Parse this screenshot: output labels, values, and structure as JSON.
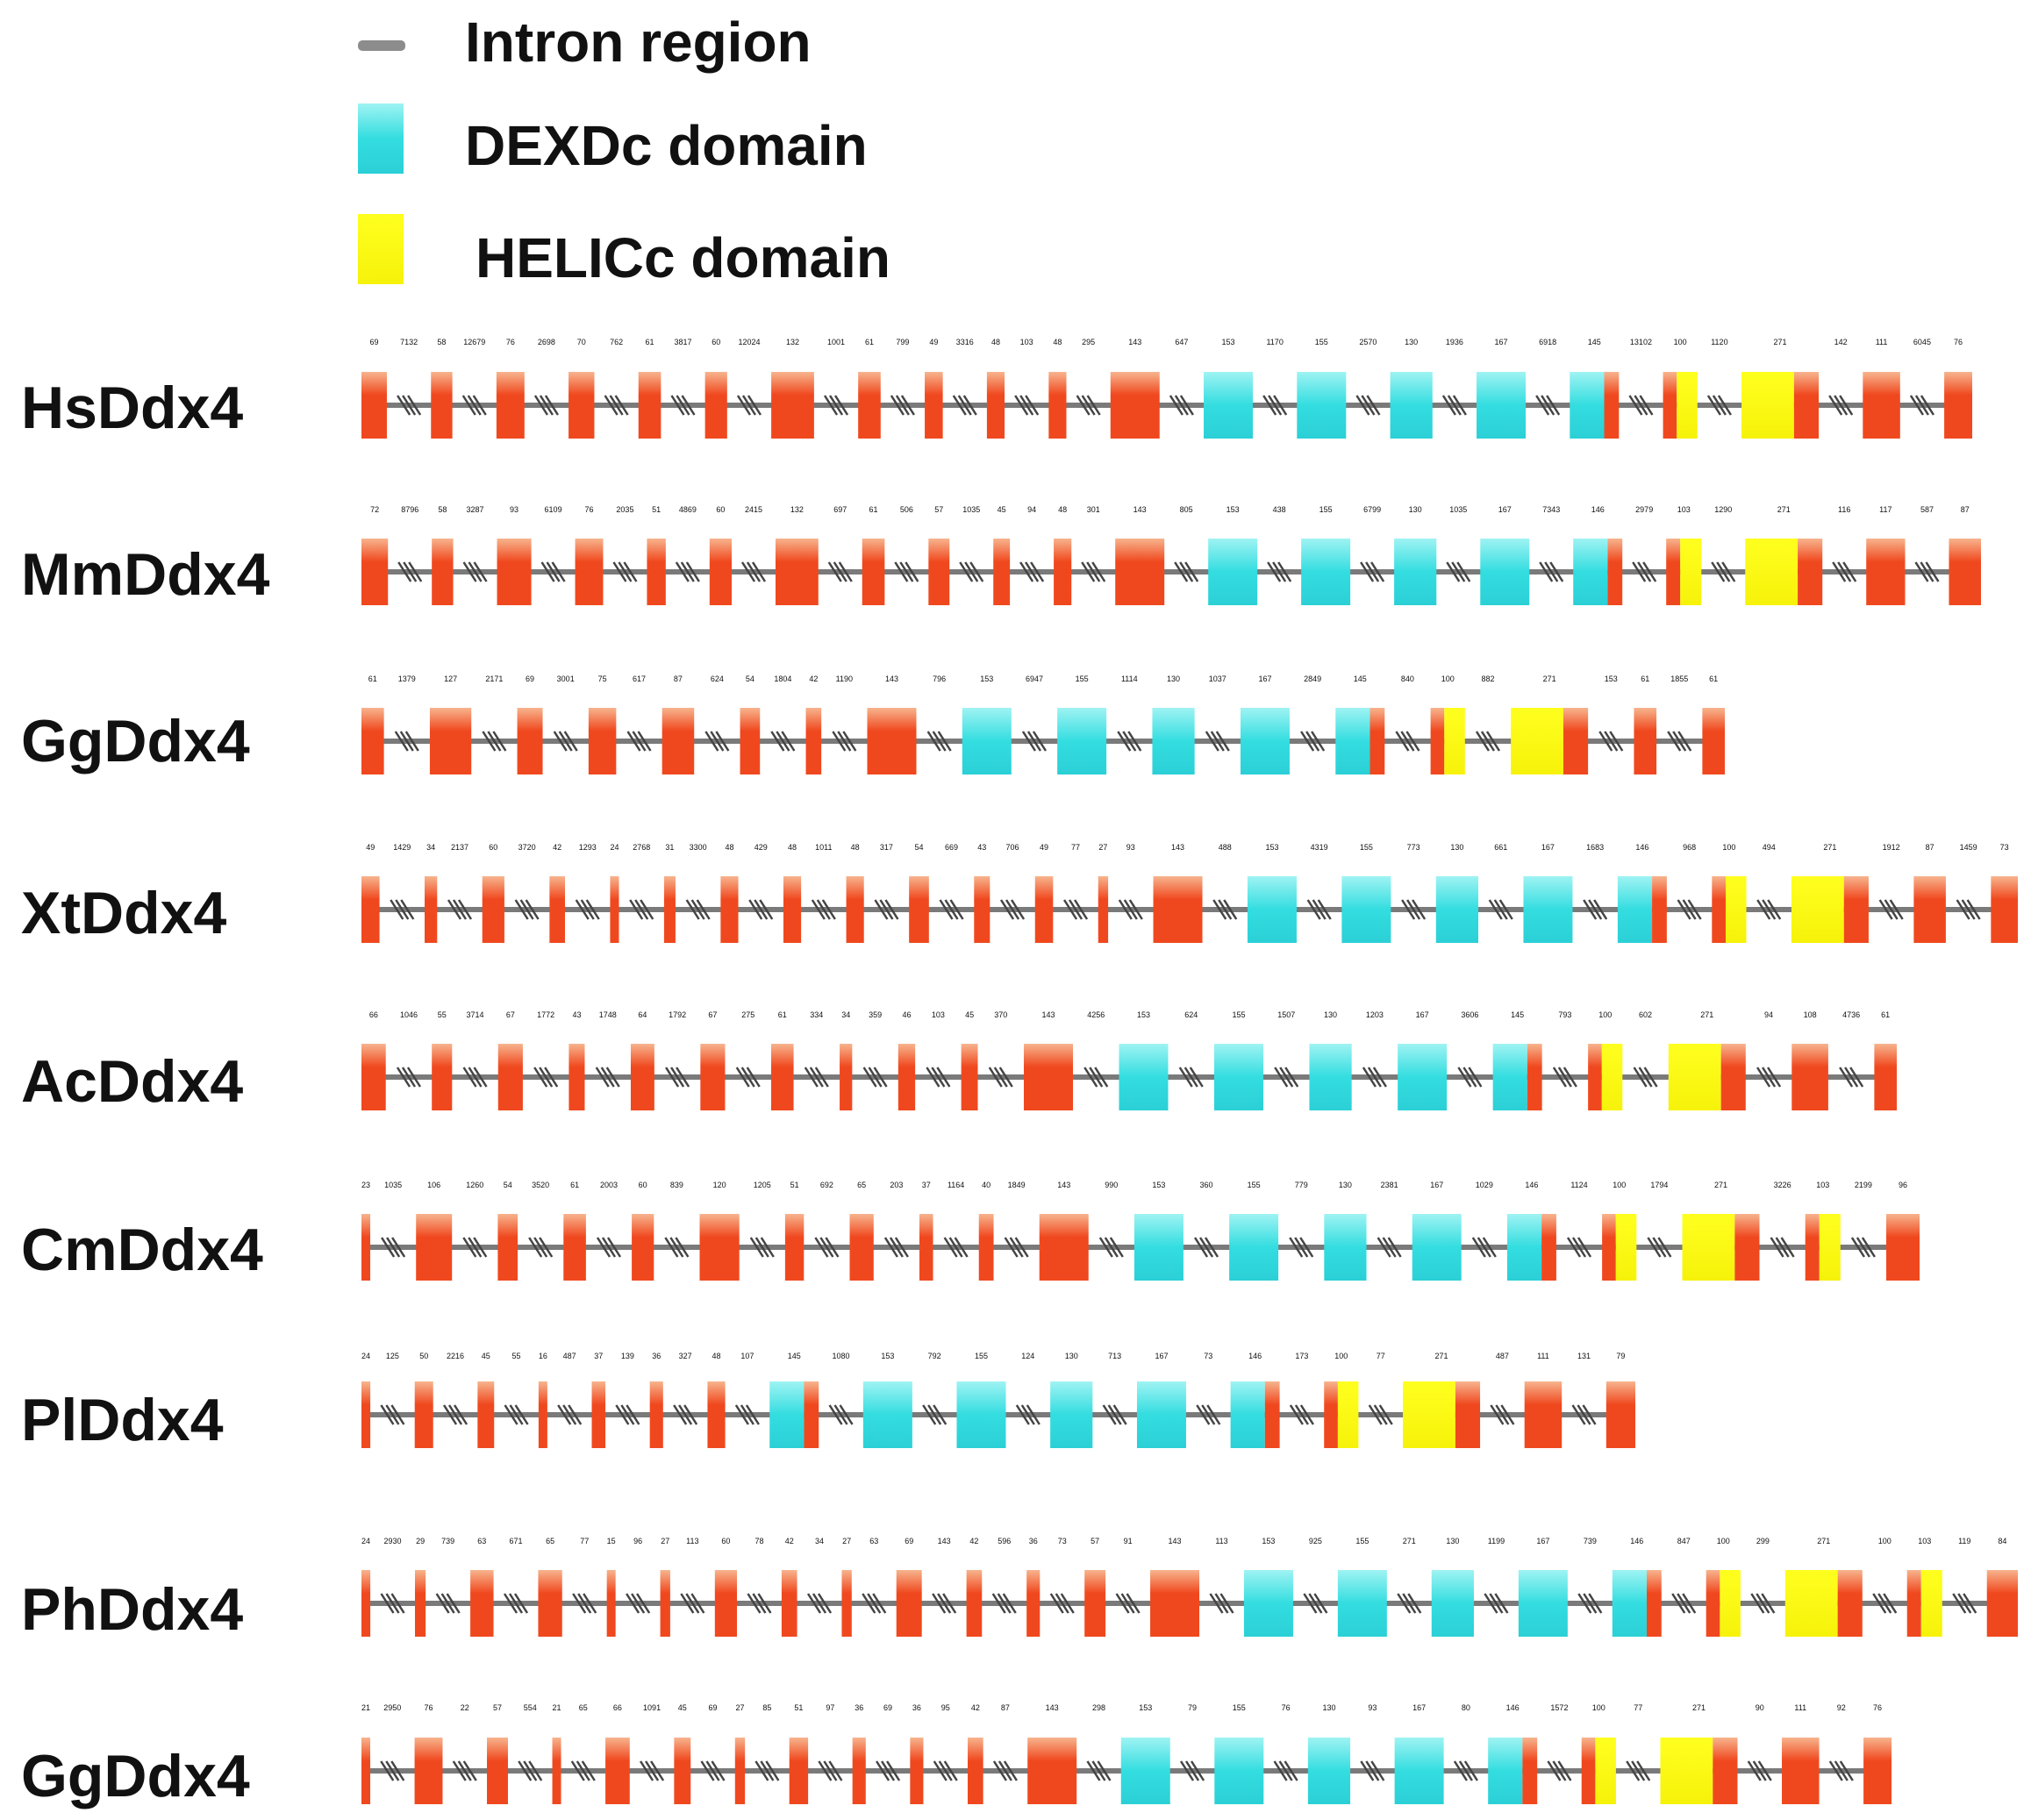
{
  "legend": {
    "intron": {
      "label": "Intron region",
      "color": "#8c8c8c"
    },
    "dexdc": {
      "label": "DEXDc domain",
      "color": "#33dde0"
    },
    "helicc": {
      "label": "HELICc domain",
      "color": "#ffff1f"
    }
  },
  "colors": {
    "exon": "#f0481e",
    "intron_line": "#7a7a7a",
    "break_marks": "#444444"
  },
  "genes": [
    {
      "name": "HsDdx4",
      "numbers": [
        "69",
        "7132",
        "58",
        "12679",
        "76",
        "2698",
        "70",
        "762",
        "61",
        "3817",
        "60",
        "12024",
        "132",
        "1001",
        "61",
        "799",
        "49",
        "3316",
        "48",
        "103",
        "48",
        "295",
        "143",
        "647",
        "153",
        "1170",
        "155",
        "2570",
        "130",
        "1936",
        "167",
        "6918",
        "145",
        "13102",
        "100",
        "1120",
        "271",
        "142",
        "111",
        "6045",
        "76"
      ]
    },
    {
      "name": "MmDdx4",
      "numbers": [
        "72",
        "8796",
        "58",
        "3287",
        "93",
        "6109",
        "76",
        "2035",
        "51",
        "4869",
        "60",
        "2415",
        "132",
        "697",
        "61",
        "506",
        "57",
        "1035",
        "45",
        "94",
        "48",
        "301",
        "143",
        "805",
        "153",
        "438",
        "155",
        "6799",
        "130",
        "1035",
        "167",
        "7343",
        "146",
        "2979",
        "103",
        "1290",
        "271",
        "116",
        "117",
        "587",
        "87"
      ]
    },
    {
      "name": "GgDdx4",
      "numbers": [
        "61",
        "1379",
        "127",
        "2171",
        "69",
        "3001",
        "75",
        "617",
        "87",
        "624",
        "54",
        "1804",
        "42",
        "1190",
        "143",
        "796",
        "153",
        "6947",
        "155",
        "1114",
        "130",
        "1037",
        "167",
        "2849",
        "145",
        "840",
        "100",
        "882",
        "271",
        "153",
        "61",
        "1855",
        "61"
      ]
    },
    {
      "name": "XtDdx4",
      "numbers": [
        "49",
        "1429",
        "34",
        "2137",
        "60",
        "3720",
        "42",
        "1293",
        "24",
        "2768",
        "31",
        "3300",
        "48",
        "429",
        "48",
        "1011",
        "48",
        "317",
        "54",
        "669",
        "43",
        "706",
        "49",
        "77",
        "27",
        "93",
        "143",
        "488",
        "153",
        "4319",
        "155",
        "773",
        "130",
        "661",
        "167",
        "1683",
        "146",
        "968",
        "100",
        "494",
        "271",
        "1912",
        "87",
        "1459",
        "73"
      ]
    },
    {
      "name": "AcDdx4",
      "numbers": [
        "66",
        "1046",
        "55",
        "3714",
        "67",
        "1772",
        "43",
        "1748",
        "64",
        "1792",
        "67",
        "275",
        "61",
        "334",
        "34",
        "359",
        "46",
        "103",
        "45",
        "370",
        "143",
        "4256",
        "153",
        "624",
        "155",
        "1507",
        "130",
        "1203",
        "167",
        "3606",
        "145",
        "793",
        "100",
        "602",
        "271",
        "94",
        "108",
        "4736",
        "61"
      ]
    },
    {
      "name": "CmDdx4",
      "numbers": [
        "23",
        "1035",
        "106",
        "1260",
        "54",
        "3520",
        "61",
        "2003",
        "60",
        "839",
        "120",
        "1205",
        "51",
        "692",
        "65",
        "203",
        "37",
        "1164",
        "40",
        "1849",
        "143",
        "990",
        "153",
        "360",
        "155",
        "779",
        "130",
        "2381",
        "167",
        "1029",
        "146",
        "1124",
        "100",
        "1794",
        "271",
        "3226",
        "103",
        "2199",
        "96"
      ]
    },
    {
      "name": "PlDdx4",
      "numbers": [
        "24",
        "125",
        "50",
        "2216",
        "45",
        "55",
        "16",
        "487",
        "37",
        "139",
        "36",
        "327",
        "48",
        "107",
        "145",
        "1080",
        "153",
        "792",
        "155",
        "124",
        "130",
        "713",
        "167",
        "73",
        "146",
        "173",
        "100",
        "77",
        "271",
        "487",
        "111",
        "131",
        "79"
      ]
    },
    {
      "name": "PhDdx4",
      "numbers": [
        "24",
        "2930",
        "29",
        "739",
        "63",
        "671",
        "65",
        "77",
        "15",
        "96",
        "27",
        "113",
        "60",
        "78",
        "42",
        "34",
        "27",
        "63",
        "69",
        "143",
        "42",
        "596",
        "36",
        "73",
        "57",
        "91",
        "143",
        "113",
        "153",
        "925",
        "155",
        "271",
        "130",
        "1199",
        "167",
        "739",
        "146",
        "847",
        "100",
        "299",
        "271",
        "100",
        "103",
        "119",
        "84"
      ]
    },
    {
      "name": "GgDdx4",
      "numbers": [
        "21",
        "2950",
        "76",
        "22",
        "57",
        "554",
        "21",
        "65",
        "66",
        "1091",
        "45",
        "69",
        "27",
        "85",
        "51",
        "97",
        "36",
        "69",
        "36",
        "95",
        "42",
        "87",
        "143",
        "298",
        "153",
        "79",
        "155",
        "76",
        "130",
        "93",
        "167",
        "80",
        "146",
        "1572",
        "100",
        "77",
        "271",
        "90",
        "111",
        "92",
        "76"
      ]
    }
  ]
}
